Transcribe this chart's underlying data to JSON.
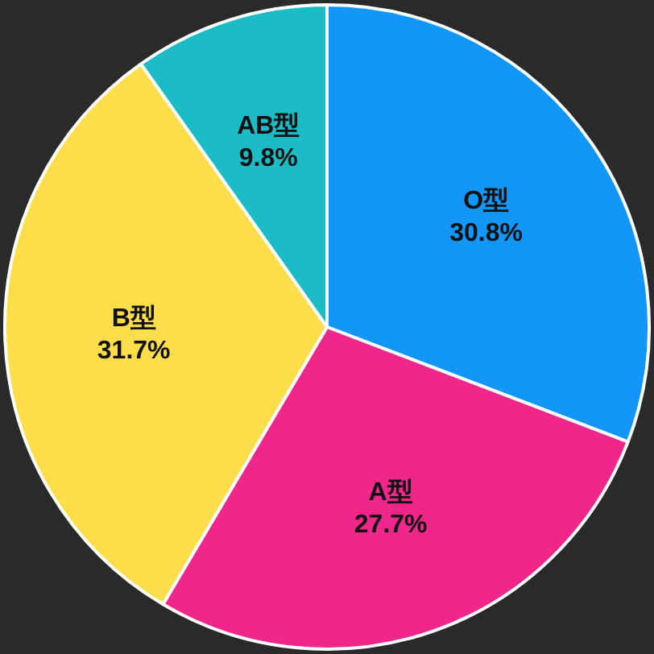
{
  "chart_data": {
    "type": "pie",
    "categories": [
      "O型",
      "A型",
      "B型",
      "AB型"
    ],
    "values": [
      30.8,
      27.7,
      31.7,
      9.8
    ],
    "colors": [
      "#1296f8",
      "#f0268a",
      "#fcdd4a",
      "#1cbcc6"
    ],
    "value_labels": [
      "30.8%",
      "27.7%",
      "31.7%",
      "9.8%"
    ]
  }
}
